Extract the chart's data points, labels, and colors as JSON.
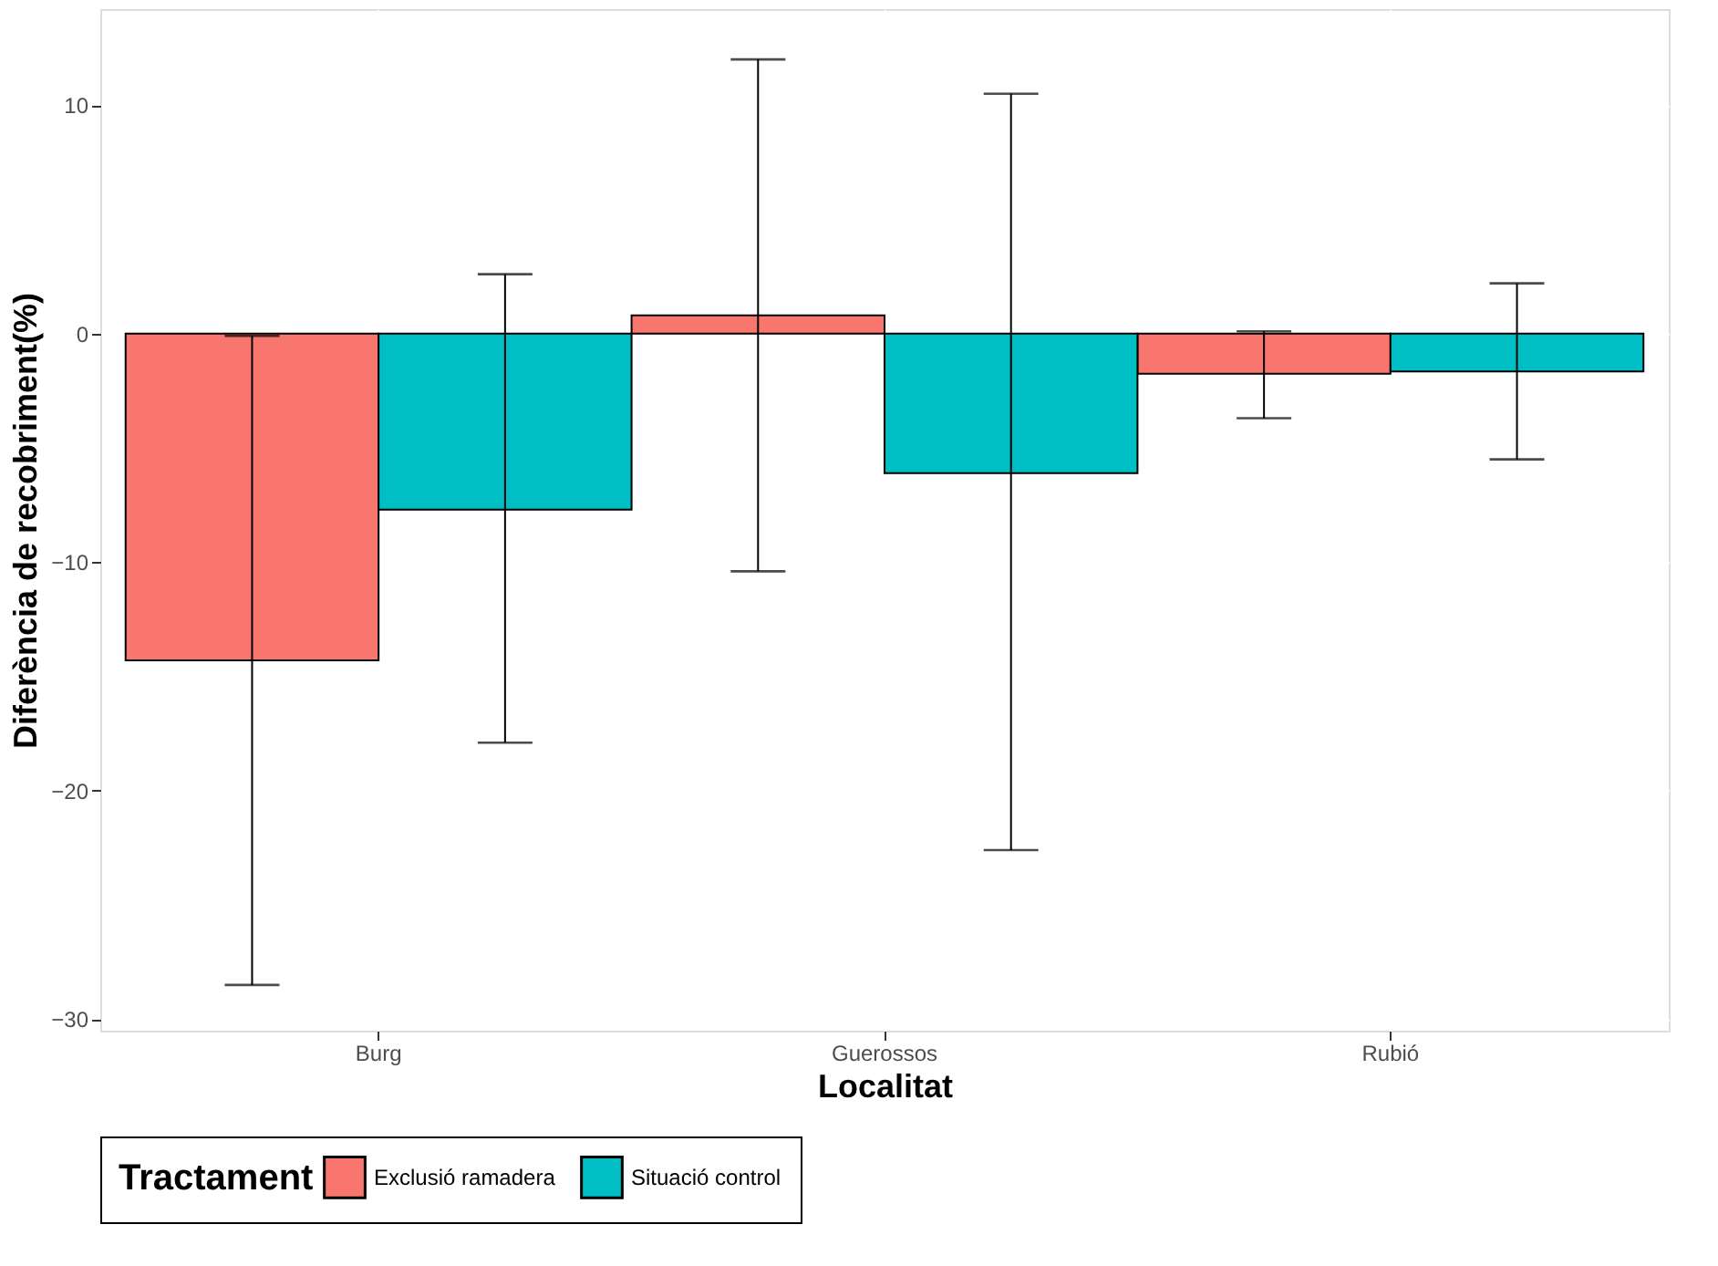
{
  "chart_data": {
    "type": "bar",
    "xlabel": "Localitat",
    "ylabel": "Diferència de recobriment(%)",
    "legend_title": "Tractament",
    "categories": [
      "Burg",
      "Guerossos",
      "Rubió"
    ],
    "series": [
      {
        "name": "Exclusió ramadera",
        "color": "#f8766d",
        "values": [
          -14.3,
          0.8,
          -1.75
        ],
        "errors": [
          [
            -28.5,
            -0.1
          ],
          [
            -10.4,
            12.0
          ],
          [
            -3.7,
            0.1
          ]
        ]
      },
      {
        "name": "Situació control",
        "color": "#00bfc4",
        "values": [
          -7.7,
          -6.1,
          -1.65
        ],
        "errors": [
          [
            -17.9,
            2.6
          ],
          [
            -22.6,
            10.5
          ],
          [
            -5.5,
            2.2
          ]
        ]
      }
    ],
    "ylim": [
      -30.5,
      14.2
    ],
    "yticks": [
      -30,
      -20,
      -10,
      0,
      10
    ],
    "grid": true,
    "legend": "bottom"
  }
}
